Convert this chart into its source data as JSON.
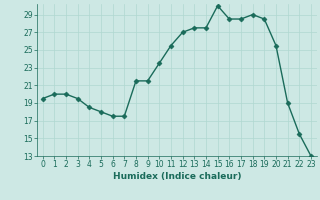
{
  "x": [
    0,
    1,
    2,
    3,
    4,
    5,
    6,
    7,
    8,
    9,
    10,
    11,
    12,
    13,
    14,
    15,
    16,
    17,
    18,
    19,
    20,
    21,
    22,
    23
  ],
  "y": [
    19.5,
    20.0,
    20.0,
    19.5,
    18.5,
    18.0,
    17.5,
    17.5,
    21.5,
    21.5,
    23.5,
    25.5,
    27.0,
    27.5,
    27.5,
    30.0,
    28.5,
    28.5,
    29.0,
    28.5,
    25.5,
    19.0,
    15.5,
    13.0
  ],
  "xlabel": "Humidex (Indice chaleur)",
  "bg_color": "#cde8e4",
  "line_color": "#1a6b5a",
  "marker": "D",
  "marker_size": 2.5,
  "line_width": 1.0,
  "xlim": [
    -0.5,
    23.5
  ],
  "ylim": [
    13,
    30
  ],
  "yticks": [
    13,
    15,
    17,
    19,
    21,
    23,
    25,
    27,
    29
  ],
  "xticks": [
    0,
    1,
    2,
    3,
    4,
    5,
    6,
    7,
    8,
    9,
    10,
    11,
    12,
    13,
    14,
    15,
    16,
    17,
    18,
    19,
    20,
    21,
    22,
    23
  ],
  "grid_color": "#b0d8d0",
  "xlabel_fontsize": 6.5,
  "tick_fontsize": 5.5
}
